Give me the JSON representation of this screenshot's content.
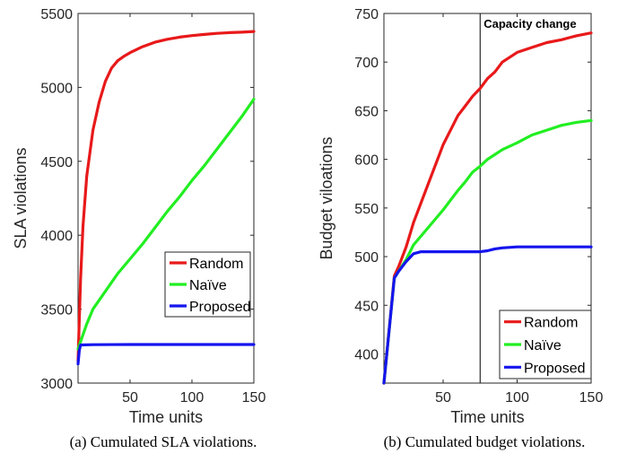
{
  "chart_data": [
    {
      "type": "line",
      "caption": "(a) Cumulated SLA violations.",
      "xlabel": "Time units",
      "ylabel": "SLA violations",
      "xlim": [
        8,
        150
      ],
      "ylim": [
        3000,
        5500
      ],
      "xticks": [
        50,
        100,
        150
      ],
      "yticks": [
        3000,
        3500,
        4000,
        4500,
        5000,
        5500
      ],
      "legend": "bottom-right",
      "series": [
        {
          "name": "Random",
          "color": "#e8191a",
          "points": [
            [
              8,
              3150
            ],
            [
              10,
              3700
            ],
            [
              12,
              4060
            ],
            [
              15,
              4400
            ],
            [
              20,
              4710
            ],
            [
              25,
              4900
            ],
            [
              30,
              5040
            ],
            [
              35,
              5130
            ],
            [
              40,
              5180
            ],
            [
              45,
              5210
            ],
            [
              50,
              5235
            ],
            [
              60,
              5275
            ],
            [
              70,
              5305
            ],
            [
              80,
              5325
            ],
            [
              90,
              5340
            ],
            [
              100,
              5350
            ],
            [
              110,
              5358
            ],
            [
              120,
              5365
            ],
            [
              130,
              5370
            ],
            [
              140,
              5373
            ],
            [
              150,
              5378
            ]
          ]
        },
        {
          "name": "Naïve",
          "color": "#22ee22",
          "points": [
            [
              8,
              3230
            ],
            [
              10,
              3280
            ],
            [
              15,
              3400
            ],
            [
              20,
              3500
            ],
            [
              30,
              3620
            ],
            [
              40,
              3740
            ],
            [
              50,
              3840
            ],
            [
              60,
              3940
            ],
            [
              70,
              4050
            ],
            [
              80,
              4160
            ],
            [
              90,
              4260
            ],
            [
              100,
              4370
            ],
            [
              110,
              4470
            ],
            [
              120,
              4580
            ],
            [
              130,
              4690
            ],
            [
              140,
              4800
            ],
            [
              150,
              4920
            ]
          ]
        },
        {
          "name": "Proposed",
          "color": "#1515ee",
          "points": [
            [
              8,
              3130
            ],
            [
              9,
              3220
            ],
            [
              10,
              3258
            ],
            [
              20,
              3260
            ],
            [
              50,
              3261
            ],
            [
              100,
              3261
            ],
            [
              150,
              3261
            ]
          ]
        }
      ]
    },
    {
      "type": "line",
      "caption": "(b) Cumulated budget violations.",
      "xlabel": "Time units",
      "ylabel": "Budget viloations",
      "xlim": [
        10,
        150
      ],
      "ylim": [
        370,
        750
      ],
      "xticks": [
        50,
        100,
        150
      ],
      "yticks": [
        400,
        450,
        500,
        550,
        600,
        650,
        700,
        750
      ],
      "legend": "bottom-right",
      "annotation": {
        "label": "Capacity change",
        "x": 75
      },
      "series": [
        {
          "name": "Random",
          "color": "#e8191a",
          "points": [
            [
              10,
              370
            ],
            [
              17,
              480
            ],
            [
              20,
              490
            ],
            [
              25,
              510
            ],
            [
              30,
              535
            ],
            [
              40,
              575
            ],
            [
              50,
              615
            ],
            [
              60,
              645
            ],
            [
              65,
              655
            ],
            [
              70,
              665
            ],
            [
              75,
              673
            ],
            [
              80,
              683
            ],
            [
              85,
              690
            ],
            [
              90,
              700
            ],
            [
              95,
              705
            ],
            [
              100,
              710
            ],
            [
              110,
              715
            ],
            [
              120,
              720
            ],
            [
              130,
              723
            ],
            [
              140,
              727
            ],
            [
              150,
              730
            ]
          ]
        },
        {
          "name": "Naïve",
          "color": "#22ee22",
          "points": [
            [
              10,
              370
            ],
            [
              17,
              478
            ],
            [
              20,
              485
            ],
            [
              25,
              497
            ],
            [
              30,
              512
            ],
            [
              40,
              530
            ],
            [
              50,
              548
            ],
            [
              60,
              568
            ],
            [
              65,
              577
            ],
            [
              70,
              587
            ],
            [
              75,
              593
            ],
            [
              80,
              600
            ],
            [
              90,
              610
            ],
            [
              100,
              617
            ],
            [
              110,
              625
            ],
            [
              120,
              630
            ],
            [
              130,
              635
            ],
            [
              140,
              638
            ],
            [
              150,
              640
            ]
          ]
        },
        {
          "name": "Proposed",
          "color": "#1515ee",
          "points": [
            [
              10,
              370
            ],
            [
              17,
              478
            ],
            [
              20,
              485
            ],
            [
              25,
              495
            ],
            [
              30,
              503
            ],
            [
              35,
              505
            ],
            [
              75,
              505
            ],
            [
              80,
              506
            ],
            [
              85,
              508
            ],
            [
              90,
              509
            ],
            [
              100,
              510
            ],
            [
              150,
              510
            ]
          ]
        }
      ]
    }
  ]
}
